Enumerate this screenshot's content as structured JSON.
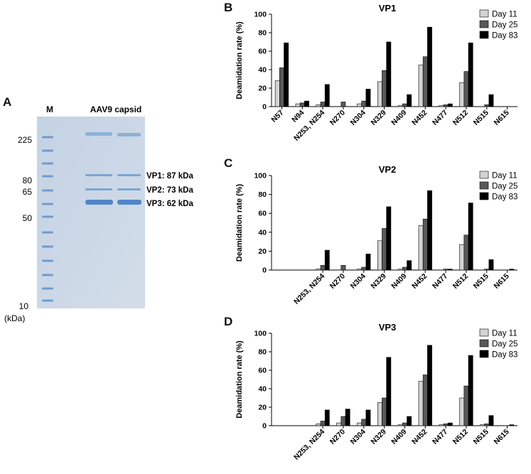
{
  "panel_labels": {
    "a": "A",
    "b": "B",
    "c": "C",
    "d": "D"
  },
  "gel": {
    "lane_m_label": "M",
    "title": "AAV9 capsid",
    "marker_labels": [
      "225",
      "80",
      "65",
      "50",
      "10"
    ],
    "unit": "(kDa)",
    "band_labels": [
      "VP1: 87 kDa",
      "VP2: 73 kDa",
      "VP3: 62 kDa"
    ],
    "colors": {
      "gel_background": "#cad6e6",
      "band": "#4f86c9",
      "marker": "#6f9bd0"
    }
  },
  "chart_data": [
    {
      "type": "bar",
      "title": "VP1",
      "ylabel": "Deamidation rate (%)",
      "xlabel": "",
      "ylim": [
        0,
        100
      ],
      "yticks": [
        "0",
        "20",
        "40",
        "60",
        "80",
        "100"
      ],
      "legend_position": "top-right",
      "categories": [
        "N57",
        "N94",
        "N253, N254",
        "N270",
        "N304",
        "N329",
        "N409",
        "N452",
        "N477",
        "N512",
        "N515",
        "N615"
      ],
      "series": [
        {
          "name": "Day 11",
          "color": "#d3d3d3",
          "values": [
            28,
            3,
            2,
            0,
            3,
            27,
            1,
            45,
            1,
            26,
            0,
            0
          ]
        },
        {
          "name": "Day 25",
          "color": "#595959",
          "values": [
            42,
            4,
            5,
            5,
            6,
            39,
            3,
            54,
            2,
            38,
            2,
            0
          ]
        },
        {
          "name": "Day 83",
          "color": "#000000",
          "values": [
            69,
            6,
            24,
            0,
            19,
            70,
            13,
            86,
            3,
            69,
            13,
            0
          ]
        }
      ]
    },
    {
      "type": "bar",
      "title": "VP2",
      "ylabel": "Deamidation rate (%)",
      "xlabel": "",
      "ylim": [
        0,
        100
      ],
      "yticks": [
        "0",
        "20",
        "40",
        "60",
        "80",
        "100"
      ],
      "legend_position": "top-right",
      "categories": [
        "N253, N254",
        "N270",
        "N304",
        "N329",
        "N409",
        "N452",
        "N477",
        "N512",
        "N515",
        "N615"
      ],
      "series": [
        {
          "name": "Day 11",
          "color": "#d3d3d3",
          "values": [
            1,
            0,
            1,
            31,
            1,
            47,
            0,
            27,
            0,
            0
          ]
        },
        {
          "name": "Day 25",
          "color": "#595959",
          "values": [
            5,
            5,
            3,
            44,
            3,
            54,
            1,
            37,
            1,
            0
          ]
        },
        {
          "name": "Day 83",
          "color": "#000000",
          "values": [
            21,
            0,
            17,
            67,
            10,
            84,
            1,
            71,
            11,
            1
          ]
        }
      ]
    },
    {
      "type": "bar",
      "title": "VP3",
      "ylabel": "Deamidation rate (%)",
      "xlabel": "",
      "ylim": [
        0,
        100
      ],
      "yticks": [
        "0",
        "20",
        "40",
        "60",
        "80",
        "100"
      ],
      "legend_position": "top-right",
      "categories": [
        "N253, N254",
        "N270",
        "N304",
        "N329",
        "N409",
        "N452",
        "N477",
        "N512",
        "N515",
        "N615"
      ],
      "series": [
        {
          "name": "Day 11",
          "color": "#d3d3d3",
          "values": [
            2,
            3,
            3,
            25,
            1,
            48,
            1,
            30,
            1,
            0
          ]
        },
        {
          "name": "Day 25",
          "color": "#595959",
          "values": [
            5,
            10,
            7,
            30,
            3,
            55,
            2,
            43,
            2,
            0
          ]
        },
        {
          "name": "Day 83",
          "color": "#000000",
          "values": [
            17,
            18,
            17,
            74,
            10,
            87,
            3,
            76,
            11,
            1
          ]
        }
      ]
    }
  ]
}
